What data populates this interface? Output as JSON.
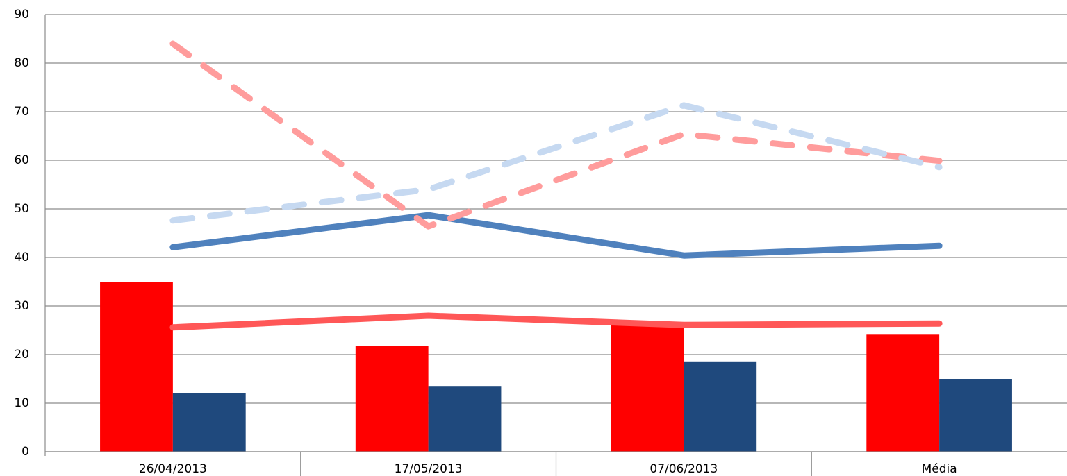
{
  "chart_data": {
    "type": "combo",
    "categories": [
      "26/04/2013",
      "17/05/2013",
      "07/06/2013",
      "Média"
    ],
    "ylim": [
      0,
      90
    ],
    "yticks": [
      0,
      10,
      20,
      30,
      40,
      50,
      60,
      70,
      80,
      90
    ],
    "grid": true,
    "series": [
      {
        "kind": "bar",
        "color": "#ff0000",
        "values": [
          35,
          21.8,
          26.1,
          24.1
        ]
      },
      {
        "kind": "bar",
        "color": "#1f497d",
        "values": [
          12,
          13.4,
          18.6,
          15
        ]
      },
      {
        "kind": "line",
        "dashed": false,
        "color": "#ff5757",
        "values": [
          25.6,
          28,
          26.1,
          26.4
        ]
      },
      {
        "kind": "line",
        "dashed": false,
        "color": "#4f81bd",
        "values": [
          42.1,
          48.7,
          40.4,
          42.4
        ]
      },
      {
        "kind": "line",
        "dashed": true,
        "color": "#ff9c9c",
        "values": [
          84,
          46.4,
          65.4,
          59.9
        ]
      },
      {
        "kind": "line",
        "dashed": true,
        "color": "#c6d9f1",
        "values": [
          47.6,
          54,
          71.3,
          58.6
        ]
      }
    ]
  }
}
